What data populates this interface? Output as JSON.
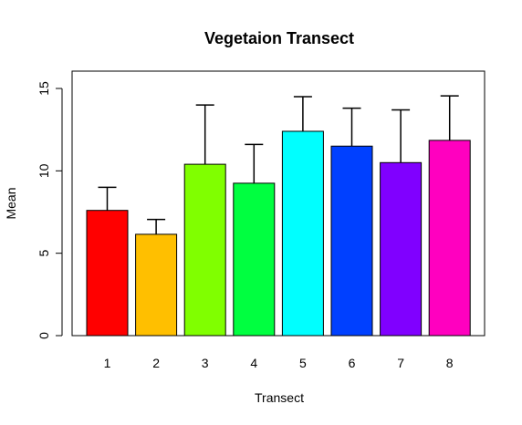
{
  "chart_data": {
    "type": "bar",
    "title": "Vegetaion Transect",
    "xlabel": "Transect",
    "ylabel": "Mean",
    "categories": [
      "1",
      "2",
      "3",
      "4",
      "5",
      "6",
      "7",
      "8"
    ],
    "values": [
      7.6,
      6.15,
      10.4,
      9.25,
      12.4,
      11.5,
      10.5,
      11.85
    ],
    "error_upper": [
      9.0,
      7.05,
      14.0,
      11.6,
      14.5,
      13.8,
      13.7,
      14.55
    ],
    "colors": [
      "#FF0000",
      "#FFBF00",
      "#80FF00",
      "#00FF40",
      "#00FFFF",
      "#0040FF",
      "#8000FF",
      "#FF00BF"
    ],
    "yticks": [
      "0",
      "5",
      "10",
      "15"
    ],
    "ylim": [
      0,
      16
    ],
    "grid": false,
    "legend": "none"
  }
}
